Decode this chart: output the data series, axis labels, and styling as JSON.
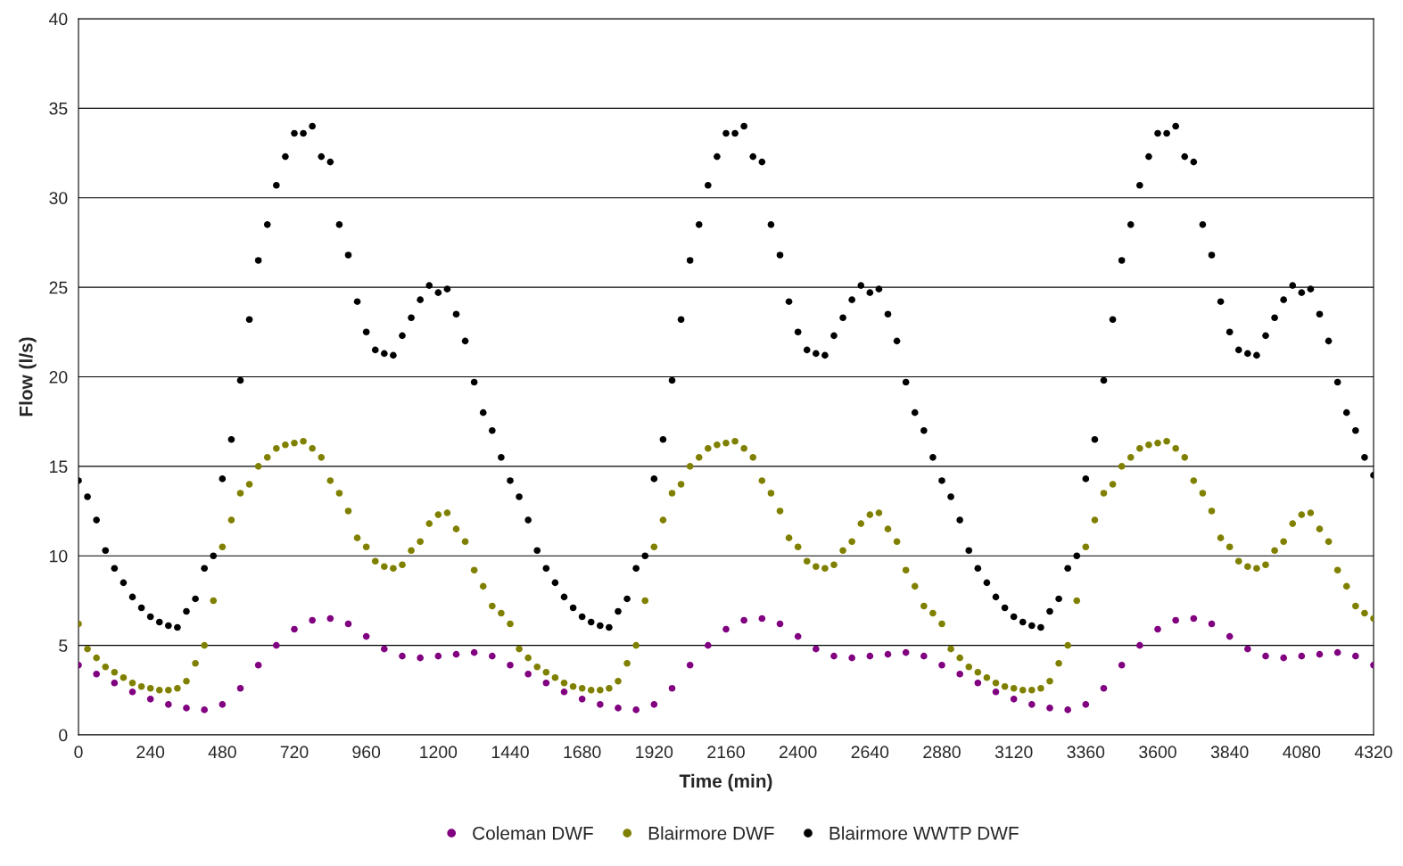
{
  "chart_data": {
    "type": "scatter",
    "xlabel": "Time (min)",
    "ylabel": "Flow (l/s)",
    "xlim": [
      0,
      4320
    ],
    "xticks": [
      0,
      240,
      480,
      720,
      960,
      1200,
      1440,
      1680,
      1920,
      2160,
      2400,
      2640,
      2880,
      3120,
      3360,
      3600,
      3840,
      4080,
      4320
    ],
    "ylim": [
      0,
      40
    ],
    "yticks": [
      0,
      5,
      10,
      15,
      20,
      25,
      30,
      35,
      40
    ],
    "grid": "y",
    "legend": "bottom",
    "marker": "circle",
    "x": [
      0,
      30,
      60,
      90,
      120,
      150,
      180,
      210,
      240,
      270,
      300,
      330,
      360,
      390,
      420,
      450,
      480,
      510,
      540,
      570,
      600,
      630,
      660,
      690,
      720,
      750,
      780,
      810,
      840,
      870,
      900,
      930,
      960,
      990,
      1020,
      1050,
      1080,
      1110,
      1140,
      1170,
      1200,
      1230,
      1260,
      1290,
      1320,
      1350,
      1380,
      1410,
      1440,
      1470,
      1500,
      1530,
      1560,
      1590,
      1620,
      1650,
      1680,
      1710,
      1740,
      1770,
      1800,
      1830,
      1860,
      1890,
      1920,
      1950,
      1980,
      2010,
      2040,
      2070,
      2100,
      2130,
      2160,
      2190,
      2220,
      2250,
      2280,
      2310,
      2340,
      2370,
      2400,
      2430,
      2460,
      2490,
      2520,
      2550,
      2580,
      2610,
      2640,
      2670,
      2700,
      2730,
      2760,
      2790,
      2820,
      2850,
      2880,
      2910,
      2940,
      2970,
      3000,
      3030,
      3060,
      3090,
      3120,
      3150,
      3180,
      3210,
      3240,
      3270,
      3300,
      3330,
      3360,
      3390,
      3420,
      3450,
      3480,
      3510,
      3540,
      3570,
      3600,
      3630,
      3660,
      3690,
      3720,
      3750,
      3780,
      3810,
      3840,
      3870,
      3900,
      3930,
      3960,
      3990,
      4020,
      4050,
      4080,
      4110,
      4140,
      4170,
      4200,
      4230,
      4260,
      4290,
      4320
    ],
    "series": [
      {
        "name": "Coleman DWF",
        "color": "#800080",
        "x": [
          0,
          60,
          120,
          180,
          240,
          300,
          360,
          420,
          480,
          540,
          600,
          660,
          720,
          780,
          840,
          900,
          960,
          1020,
          1080,
          1140,
          1200,
          1260,
          1320,
          1380,
          1440,
          1500,
          1560,
          1620,
          1680,
          1740,
          1800,
          1860,
          1920,
          1980,
          2040,
          2100,
          2160,
          2220,
          2280,
          2340,
          2400,
          2460,
          2520,
          2580,
          2640,
          2700,
          2760,
          2820,
          2880,
          2940,
          3000,
          3060,
          3120,
          3180,
          3240,
          3300,
          3360,
          3420,
          3480,
          3540,
          3600,
          3660,
          3720,
          3780,
          3840,
          3900,
          3960,
          4020,
          4080,
          4140,
          4200,
          4260,
          4320
        ],
        "values": [
          3.9,
          3.4,
          2.9,
          2.4,
          2.0,
          1.7,
          1.5,
          1.4,
          1.7,
          2.6,
          3.9,
          5.0,
          5.9,
          6.4,
          6.5,
          6.2,
          5.5,
          4.8,
          4.4,
          4.3,
          4.4,
          4.5,
          4.6,
          4.4,
          3.9,
          3.4,
          2.9,
          2.4,
          2.0,
          1.7,
          1.5,
          1.4,
          1.7,
          2.6,
          3.9,
          5.0,
          5.9,
          6.4,
          6.5,
          6.2,
          5.5,
          4.8,
          4.4,
          4.3,
          4.4,
          4.5,
          4.6,
          4.4,
          3.9,
          3.4,
          2.9,
          2.4,
          2.0,
          1.7,
          1.5,
          1.4,
          1.7,
          2.6,
          3.9,
          5.0,
          5.9,
          6.4,
          6.5,
          6.2,
          5.5,
          4.8,
          4.4,
          4.3,
          4.4,
          4.5,
          4.6,
          4.4,
          3.9
        ]
      },
      {
        "name": "Blairmore DWF",
        "color": "#808000",
        "values": [
          6.2,
          4.8,
          4.3,
          3.8,
          3.5,
          3.2,
          2.9,
          2.7,
          2.6,
          2.5,
          2.5,
          2.6,
          3.0,
          4.0,
          5.0,
          7.5,
          10.5,
          12.0,
          13.5,
          14.0,
          15.0,
          15.5,
          16.0,
          16.2,
          16.3,
          16.4,
          16.0,
          15.5,
          14.2,
          13.5,
          12.5,
          11.0,
          10.5,
          9.7,
          9.4,
          9.3,
          9.5,
          10.3,
          10.8,
          11.8,
          12.3,
          12.4,
          11.5,
          10.8,
          9.2,
          8.3,
          7.2,
          6.8,
          6.2,
          4.8,
          4.3,
          3.8,
          3.5,
          3.2,
          2.9,
          2.7,
          2.6,
          2.5,
          2.5,
          2.6,
          3.0,
          4.0,
          5.0,
          7.5,
          10.5,
          12.0,
          13.5,
          14.0,
          15.0,
          15.5,
          16.0,
          16.2,
          16.3,
          16.4,
          16.0,
          15.5,
          14.2,
          13.5,
          12.5,
          11.0,
          10.5,
          9.7,
          9.4,
          9.3,
          9.5,
          10.3,
          10.8,
          11.8,
          12.3,
          12.4,
          11.5,
          10.8,
          9.2,
          8.3,
          7.2,
          6.8,
          6.2,
          4.8,
          4.3,
          3.8,
          3.5,
          3.2,
          2.9,
          2.7,
          2.6,
          2.5,
          2.5,
          2.6,
          3.0,
          4.0,
          5.0,
          7.5,
          10.5,
          12.0,
          13.5,
          14.0,
          15.0,
          15.5,
          16.0,
          16.2,
          16.3,
          16.4,
          16.0,
          15.5,
          14.2,
          13.5,
          12.5,
          11.0,
          10.5,
          9.7,
          9.4,
          9.3,
          9.5,
          10.3,
          10.8,
          11.8,
          12.3,
          12.4,
          11.5,
          10.8,
          9.2,
          8.3,
          7.2,
          6.8,
          6.5
        ]
      },
      {
        "name": "Blairmore WWTP DWF",
        "color": "#000000",
        "values": [
          14.2,
          13.3,
          12.0,
          10.3,
          9.3,
          8.5,
          7.7,
          7.1,
          6.6,
          6.3,
          6.1,
          6.0,
          6.9,
          7.6,
          9.3,
          10.0,
          14.3,
          16.5,
          19.8,
          23.2,
          26.5,
          28.5,
          30.7,
          32.3,
          33.6,
          33.6,
          34.0,
          32.3,
          32.0,
          28.5,
          26.8,
          24.2,
          22.5,
          21.5,
          21.3,
          21.2,
          22.3,
          23.3,
          24.3,
          25.1,
          24.7,
          24.9,
          23.5,
          22.0,
          19.7,
          18.0,
          17.0,
          15.5,
          14.2,
          13.3,
          12.0,
          10.3,
          9.3,
          8.5,
          7.7,
          7.1,
          6.6,
          6.3,
          6.1,
          6.0,
          6.9,
          7.6,
          9.3,
          10.0,
          14.3,
          16.5,
          19.8,
          23.2,
          26.5,
          28.5,
          30.7,
          32.3,
          33.6,
          33.6,
          34.0,
          32.3,
          32.0,
          28.5,
          26.8,
          24.2,
          22.5,
          21.5,
          21.3,
          21.2,
          22.3,
          23.3,
          24.3,
          25.1,
          24.7,
          24.9,
          23.5,
          22.0,
          19.7,
          18.0,
          17.0,
          15.5,
          14.2,
          13.3,
          12.0,
          10.3,
          9.3,
          8.5,
          7.7,
          7.1,
          6.6,
          6.3,
          6.1,
          6.0,
          6.9,
          7.6,
          9.3,
          10.0,
          14.3,
          16.5,
          19.8,
          23.2,
          26.5,
          28.5,
          30.7,
          32.3,
          33.6,
          33.6,
          34.0,
          32.3,
          32.0,
          28.5,
          26.8,
          24.2,
          22.5,
          21.5,
          21.3,
          21.2,
          22.3,
          23.3,
          24.3,
          25.1,
          24.7,
          24.9,
          23.5,
          22.0,
          19.7,
          18.0,
          17.0,
          15.5,
          14.5
        ]
      }
    ]
  }
}
